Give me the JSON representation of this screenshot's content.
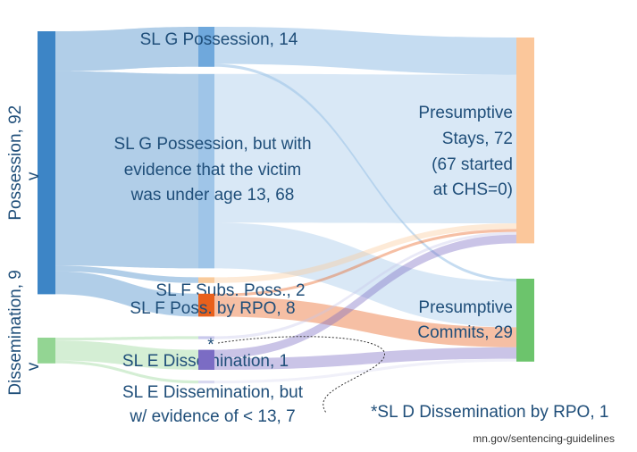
{
  "chart_data": {
    "type": "sankey",
    "nodes": [
      {
        "label": [
          "Possession, 92"
        ],
        "sub": "v",
        "value": 92,
        "column": 0,
        "color": "#3d85c6"
      },
      {
        "label": [
          "Dissemination, 9"
        ],
        "sub": "v",
        "value": 9,
        "column": 0,
        "color": "#93d593"
      },
      {
        "label": [
          "SL G Possession, 14"
        ],
        "value": 14,
        "column": 1,
        "color": "#6fa8dc"
      },
      {
        "label": [
          "SL G Possession, but with",
          "evidence that the victim",
          "was under age 13, 68"
        ],
        "value": 68,
        "column": 1,
        "color": "#9fc5e8"
      },
      {
        "label": [
          "SL F Subs. Poss., 2"
        ],
        "value": 2,
        "column": 1,
        "color": "#f9cb9c"
      },
      {
        "label": [
          "SL F Poss. by RPO, 8"
        ],
        "value": 8,
        "column": 1,
        "color": "#e8601c"
      },
      {
        "label": [
          "SL E Dissemination, 1"
        ],
        "value": 1,
        "column": 1,
        "color": "#c9c9ec"
      },
      {
        "label": [
          "SL E Dissemination, but",
          "w/ evidence of < 13, 7"
        ],
        "value": 7,
        "column": 1,
        "color": "#7b6cc4"
      },
      {
        "label": [
          "*SL D Dissemination by RPO, 1"
        ],
        "value": 1,
        "column": 1,
        "color": "#d9d9f0"
      },
      {
        "label": [
          "Presumptive",
          "Stays, 72",
          "(67 started",
          "at CHS=0)"
        ],
        "value": 72,
        "column": 2,
        "color": "#fbc79b"
      },
      {
        "label": [
          "Presumptive",
          "Commits, 29"
        ],
        "value": 29,
        "column": 2,
        "color": "#6cc46c"
      }
    ],
    "links": [
      {
        "source": 0,
        "target": 2,
        "value": 14
      },
      {
        "source": 0,
        "target": 3,
        "value": 68
      },
      {
        "source": 0,
        "target": 4,
        "value": 2
      },
      {
        "source": 0,
        "target": 5,
        "value": 8
      },
      {
        "source": 1,
        "target": 6,
        "value": 1
      },
      {
        "source": 1,
        "target": 7,
        "value": 7
      },
      {
        "source": 1,
        "target": 8,
        "value": 1
      },
      {
        "source": 2,
        "target": 9,
        "value": 13
      },
      {
        "source": 2,
        "target": 10,
        "value": 1
      },
      {
        "source": 3,
        "target": 9,
        "value": 52
      },
      {
        "source": 3,
        "target": 10,
        "value": 16
      },
      {
        "source": 4,
        "target": 9,
        "value": 2
      },
      {
        "source": 5,
        "target": 9,
        "value": 1
      },
      {
        "source": 5,
        "target": 10,
        "value": 7
      },
      {
        "source": 6,
        "target": 9,
        "value": 1
      },
      {
        "source": 7,
        "target": 9,
        "value": 3
      },
      {
        "source": 7,
        "target": 10,
        "value": 4
      },
      {
        "source": 8,
        "target": 10,
        "value": 1
      }
    ],
    "annotations": [
      "*"
    ],
    "source": "mn.gov/sentencing-guidelines"
  }
}
